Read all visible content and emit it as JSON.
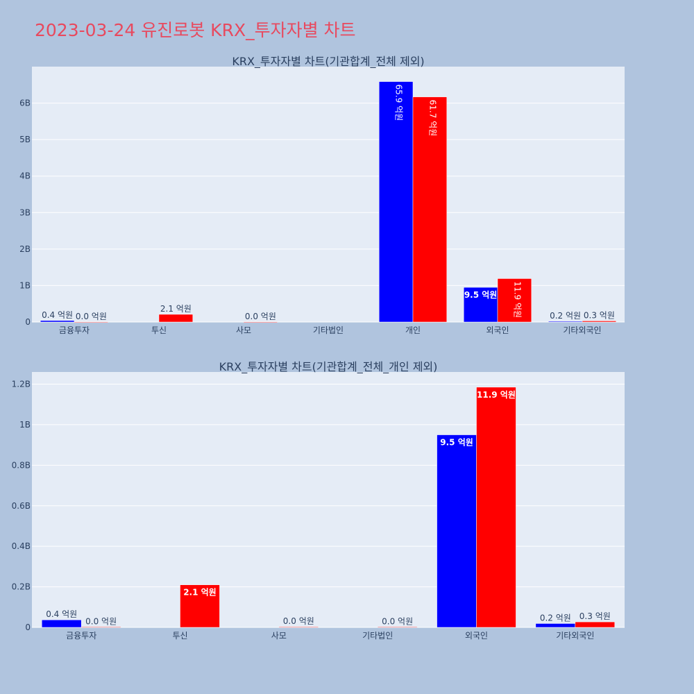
{
  "page": {
    "title": "2023-03-24 유진로봇 KRX_투자자별 차트"
  },
  "colors": {
    "background": "#b0c4de",
    "plot_bg": "#e5ecf6",
    "title": "#e8495e",
    "buy": "#0000ff",
    "sell": "#ff0000",
    "text": "#2a3f5f"
  },
  "chart_data": [
    {
      "type": "bar",
      "title": "KRX_투자자별 차트(기관합계_전체 제외)",
      "categories": [
        "금융투자",
        "투신",
        "사모",
        "기타법인",
        "개인",
        "외국인",
        "기타외국인"
      ],
      "ylim": [
        0,
        7000000000
      ],
      "yticks": [
        0,
        1000000000,
        2000000000,
        3000000000,
        4000000000,
        5000000000,
        6000000000
      ],
      "ytick_labels": [
        "0",
        "1B",
        "2B",
        "3B",
        "4B",
        "5B",
        "6B"
      ],
      "grid": true,
      "series": [
        {
          "color": "#0000ff",
          "values": [
            40000000,
            null,
            null,
            null,
            6590000000,
            950000000,
            20000000
          ],
          "labels": [
            "0.4 억원",
            null,
            null,
            null,
            "65.9 억원",
            "9.5 억원",
            "0.2 억원"
          ]
        },
        {
          "color": "#ff0000",
          "values": [
            2000000,
            210000000,
            3000000,
            null,
            6170000000,
            1190000000,
            30000000
          ],
          "labels": [
            "0.0 억원",
            "2.1 억원",
            "0.0 억원",
            null,
            "61.7 억원",
            "11.9 억원",
            "0.3 억원"
          ]
        }
      ]
    },
    {
      "type": "bar",
      "title": "KRX_투자자별 차트(기관합계_전체_개인 제외)",
      "categories": [
        "금융투자",
        "투신",
        "사모",
        "기타법인",
        "외국인",
        "기타외국인"
      ],
      "ylim": [
        0,
        1260000000
      ],
      "yticks": [
        0,
        200000000,
        400000000,
        600000000,
        800000000,
        1000000000,
        1200000000
      ],
      "ytick_labels": [
        "0",
        "0.2B",
        "0.4B",
        "0.6B",
        "0.8B",
        "1B",
        "1.2B"
      ],
      "grid": true,
      "series": [
        {
          "color": "#0000ff",
          "values": [
            37000000,
            null,
            null,
            null,
            950000000,
            19000000
          ],
          "labels": [
            "0.4 억원",
            null,
            null,
            null,
            "9.5 억원",
            "0.2 억원"
          ]
        },
        {
          "color": "#ff0000",
          "values": [
            2000000,
            210000000,
            3000000,
            2000000,
            1185000000,
            27000000
          ],
          "labels": [
            "0.0 억원",
            "2.1 억원",
            "0.0 억원",
            "0.0 억원",
            "11.9 억원",
            "0.3 억원"
          ]
        }
      ]
    }
  ]
}
